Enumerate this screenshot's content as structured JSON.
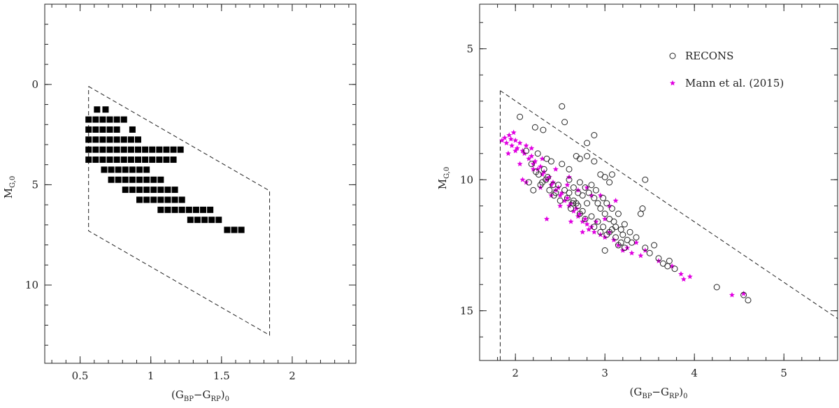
{
  "chart_data": [
    {
      "type": "scatter",
      "marker": "filled-square",
      "xlabel": "(G_BP - G_RP)_0",
      "xlabel_main": "(G",
      "xlabel_sub1": "BP",
      "xlabel_mid": "−G",
      "xlabel_sub2": "RP",
      "xlabel_tail": ")",
      "xlabel_sub3": "0",
      "ylabel_main": "M",
      "ylabel_sub": "G,0",
      "xlim": [
        0.25,
        2.45
      ],
      "ylim": [
        13.9,
        -4.0
      ],
      "x_ticks": [
        0.5,
        1,
        1.5,
        2
      ],
      "x_tick_labels": [
        "0.5",
        "1",
        "1.5",
        "2"
      ],
      "y_ticks": [
        0,
        5,
        10
      ],
      "y_tick_labels": [
        "0",
        "5",
        "10"
      ],
      "x_minor_step": 0.1,
      "y_minor_step": 1,
      "boundary_dashed": [
        [
          0.56,
          0.1
        ],
        [
          1.84,
          5.3
        ],
        [
          1.84,
          12.5
        ],
        [
          0.56,
          7.3
        ],
        [
          0.56,
          0.1
        ]
      ],
      "grid_rows": [
        {
          "y": 1.25,
          "x": [
            0.62,
            0.68
          ]
        },
        {
          "y": 1.75,
          "x": [
            0.56,
            0.61,
            0.66,
            0.71,
            0.76,
            0.81
          ]
        },
        {
          "y": 2.25,
          "x": [
            0.56,
            0.61,
            0.66,
            0.71,
            0.76,
            0.87
          ]
        },
        {
          "y": 2.75,
          "x": [
            0.56,
            0.61,
            0.66,
            0.71,
            0.76,
            0.81,
            0.86,
            0.91
          ]
        },
        {
          "y": 3.25,
          "x": [
            0.56,
            0.61,
            0.66,
            0.71,
            0.76,
            0.81,
            0.86,
            0.91,
            0.96,
            1.01,
            1.06,
            1.11,
            1.16,
            1.21
          ]
        },
        {
          "y": 3.75,
          "x": [
            0.56,
            0.61,
            0.66,
            0.71,
            0.76,
            0.81,
            0.86,
            0.91,
            0.96,
            1.01,
            1.06,
            1.11,
            1.16
          ]
        },
        {
          "y": 4.25,
          "x": [
            0.67,
            0.72,
            0.77,
            0.82,
            0.87,
            0.92,
            0.97
          ]
        },
        {
          "y": 4.75,
          "x": [
            0.72,
            0.77,
            0.82,
            0.87,
            0.92,
            0.97,
            1.02,
            1.07
          ]
        },
        {
          "y": 5.25,
          "x": [
            0.82,
            0.87,
            0.92,
            0.97,
            1.02,
            1.07,
            1.12,
            1.17
          ]
        },
        {
          "y": 5.75,
          "x": [
            0.92,
            0.97,
            1.02,
            1.07,
            1.12,
            1.17,
            1.22
          ]
        },
        {
          "y": 6.25,
          "x": [
            1.07,
            1.12,
            1.17,
            1.22,
            1.27,
            1.32,
            1.37,
            1.42
          ]
        },
        {
          "y": 6.75,
          "x": [
            1.28,
            1.33,
            1.38,
            1.43,
            1.48
          ]
        },
        {
          "y": 7.25,
          "x": [
            1.54,
            1.59,
            1.64
          ]
        }
      ]
    },
    {
      "type": "scatter",
      "xlabel": "(G_BP - G_RP)_0",
      "xlabel_main": "(G",
      "xlabel_sub1": "BP",
      "xlabel_mid": "−G",
      "xlabel_sub2": "RP",
      "xlabel_tail": ")",
      "xlabel_sub3": "0",
      "ylabel_main": "M",
      "ylabel_sub": "G,0",
      "xlim": [
        1.6,
        5.6
      ],
      "ylim": [
        16.9,
        3.3
      ],
      "x_ticks": [
        2,
        3,
        4,
        5
      ],
      "x_tick_labels": [
        "2",
        "3",
        "4",
        "5"
      ],
      "y_ticks": [
        5,
        10,
        15
      ],
      "y_tick_labels": [
        "5",
        "10",
        "15"
      ],
      "x_minor_step": 0.2,
      "y_minor_step": 1,
      "boundary_dashed_line": [
        [
          1.83,
          6.6
        ],
        [
          5.6,
          15.3
        ]
      ],
      "boundary_dashed_vertical": [
        [
          1.83,
          6.6
        ],
        [
          1.83,
          16.9
        ]
      ],
      "legend": {
        "position": "top-right",
        "entries": [
          {
            "label": "RECONS",
            "marker": "open-circle",
            "color": "#222222"
          },
          {
            "label": "Mann et al. (2015)",
            "marker": "star",
            "color": "#e000e0"
          }
        ]
      },
      "series": [
        {
          "name": "RECONS",
          "marker": "open-circle",
          "color": "#222222",
          "points": [
            [
              2.05,
              7.6
            ],
            [
              2.22,
              8.0
            ],
            [
              2.31,
              8.1
            ],
            [
              2.52,
              7.2
            ],
            [
              2.55,
              7.8
            ],
            [
              2.88,
              8.3
            ],
            [
              2.8,
              8.6
            ],
            [
              2.12,
              8.9
            ],
            [
              2.25,
              9.0
            ],
            [
              2.35,
              9.2
            ],
            [
              2.4,
              9.3
            ],
            [
              2.32,
              9.6
            ],
            [
              2.52,
              9.4
            ],
            [
              2.6,
              9.6
            ],
            [
              2.68,
              9.1
            ],
            [
              2.72,
              9.2
            ],
            [
              2.8,
              9.1
            ],
            [
              2.88,
              9.3
            ],
            [
              2.95,
              9.8
            ],
            [
              3.0,
              9.9
            ],
            [
              3.05,
              10.1
            ],
            [
              3.08,
              9.8
            ],
            [
              3.45,
              10.0
            ],
            [
              2.23,
              9.7
            ],
            [
              2.3,
              10.1
            ],
            [
              2.2,
              10.4
            ],
            [
              2.28,
              10.2
            ],
            [
              2.38,
              10.4
            ],
            [
              2.43,
              10.6
            ],
            [
              2.48,
              10.2
            ],
            [
              2.55,
              10.4
            ],
            [
              2.6,
              10.0
            ],
            [
              2.65,
              10.3
            ],
            [
              2.7,
              10.5
            ],
            [
              2.72,
              10.1
            ],
            [
              2.75,
              10.6
            ],
            [
              2.78,
              10.3
            ],
            [
              2.8,
              10.9
            ],
            [
              2.82,
              10.5
            ],
            [
              2.85,
              10.2
            ],
            [
              2.88,
              10.7
            ],
            [
              2.9,
              10.4
            ],
            [
              2.92,
              10.9
            ],
            [
              2.95,
              11.1
            ],
            [
              2.98,
              10.7
            ],
            [
              3.0,
              11.3
            ],
            [
              3.02,
              10.9
            ],
            [
              3.05,
              11.5
            ],
            [
              3.08,
              11.1
            ],
            [
              3.1,
              11.6
            ],
            [
              3.12,
              11.8
            ],
            [
              3.15,
              11.3
            ],
            [
              3.18,
              11.9
            ],
            [
              3.2,
              12.1
            ],
            [
              3.22,
              11.7
            ],
            [
              3.25,
              12.3
            ],
            [
              3.28,
              12.0
            ],
            [
              3.3,
              12.4
            ],
            [
              3.35,
              12.2
            ],
            [
              3.4,
              11.3
            ],
            [
              3.42,
              11.1
            ],
            [
              3.45,
              12.6
            ],
            [
              3.5,
              12.8
            ],
            [
              3.55,
              12.5
            ],
            [
              3.6,
              13.0
            ],
            [
              3.65,
              13.2
            ],
            [
              3.7,
              13.3
            ],
            [
              3.72,
              13.1
            ],
            [
              3.78,
              13.4
            ],
            [
              2.65,
              10.8
            ],
            [
              2.7,
              11.0
            ],
            [
              2.75,
              11.2
            ],
            [
              2.62,
              11.1
            ],
            [
              2.68,
              10.9
            ],
            [
              2.58,
              10.7
            ],
            [
              2.85,
              11.4
            ],
            [
              2.92,
              11.6
            ],
            [
              2.98,
              11.8
            ],
            [
              3.05,
              12.0
            ],
            [
              3.12,
              12.2
            ],
            [
              3.18,
              12.4
            ],
            [
              2.5,
              10.8
            ],
            [
              2.45,
              10.5
            ],
            [
              2.42,
              10.2
            ],
            [
              2.36,
              9.9
            ],
            [
              2.15,
              10.1
            ],
            [
              2.18,
              9.4
            ],
            [
              2.26,
              9.8
            ],
            [
              2.34,
              10.0
            ],
            [
              2.78,
              11.5
            ],
            [
              2.72,
              11.3
            ],
            [
              2.88,
              11.8
            ],
            [
              2.95,
              12.0
            ],
            [
              3.02,
              12.1
            ],
            [
              3.08,
              11.9
            ],
            [
              3.15,
              12.5
            ],
            [
              3.22,
              12.6
            ],
            [
              4.25,
              14.1
            ],
            [
              4.55,
              14.4
            ],
            [
              4.6,
              14.6
            ],
            [
              3.0,
              12.7
            ],
            [
              2.6,
              10.5
            ],
            [
              2.64,
              10.9
            ]
          ]
        },
        {
          "name": "Mann et al. (2015)",
          "marker": "star",
          "color": "#e000e0",
          "points": [
            [
              1.85,
              8.5
            ],
            [
              1.88,
              8.4
            ],
            [
              1.9,
              8.6
            ],
            [
              1.93,
              8.3
            ],
            [
              1.95,
              8.45
            ],
            [
              1.98,
              8.2
            ],
            [
              2.0,
              8.5
            ],
            [
              1.96,
              8.7
            ],
            [
              2.02,
              8.8
            ],
            [
              2.05,
              8.6
            ],
            [
              2.08,
              8.9
            ],
            [
              2.1,
              9.0
            ],
            [
              2.12,
              8.7
            ],
            [
              2.15,
              9.2
            ],
            [
              2.18,
              9.1
            ],
            [
              2.2,
              9.4
            ],
            [
              2.22,
              9.3
            ],
            [
              2.25,
              9.6
            ],
            [
              2.28,
              9.5
            ],
            [
              2.3,
              9.8
            ],
            [
              2.32,
              9.7
            ],
            [
              2.35,
              10.0
            ],
            [
              2.38,
              9.9
            ],
            [
              2.4,
              10.2
            ],
            [
              2.42,
              10.1
            ],
            [
              2.45,
              10.4
            ],
            [
              2.48,
              10.3
            ],
            [
              2.5,
              10.6
            ],
            [
              2.52,
              10.5
            ],
            [
              2.55,
              10.8
            ],
            [
              2.58,
              10.7
            ],
            [
              2.6,
              11.0
            ],
            [
              2.62,
              10.9
            ],
            [
              2.65,
              11.2
            ],
            [
              2.68,
              11.1
            ],
            [
              2.7,
              11.4
            ],
            [
              2.72,
              11.3
            ],
            [
              2.75,
              11.6
            ],
            [
              2.78,
              11.5
            ],
            [
              2.8,
              11.7
            ],
            [
              2.82,
              11.9
            ],
            [
              2.85,
              11.8
            ],
            [
              2.88,
              12.0
            ],
            [
              2.9,
              11.6
            ],
            [
              2.95,
              12.1
            ],
            [
              3.0,
              12.2
            ],
            [
              3.05,
              12.0
            ],
            [
              3.1,
              12.3
            ],
            [
              3.15,
              12.5
            ],
            [
              3.2,
              12.7
            ],
            [
              3.25,
              12.6
            ],
            [
              3.3,
              12.8
            ],
            [
              3.35,
              12.4
            ],
            [
              3.4,
              12.9
            ],
            [
              3.45,
              12.7
            ],
            [
              3.6,
              13.1
            ],
            [
              3.75,
              13.3
            ],
            [
              3.85,
              13.6
            ],
            [
              3.88,
              13.8
            ],
            [
              3.95,
              13.7
            ],
            [
              2.08,
              10.0
            ],
            [
              2.12,
              10.1
            ],
            [
              2.35,
              11.5
            ],
            [
              3.12,
              10.8
            ],
            [
              2.05,
              9.4
            ],
            [
              2.2,
              9.6
            ],
            [
              2.28,
              10.3
            ],
            [
              2.4,
              10.6
            ],
            [
              2.58,
              10.2
            ],
            [
              2.7,
              10.4
            ],
            [
              2.8,
              10.3
            ],
            [
              2.95,
              10.6
            ],
            [
              3.05,
              11.0
            ],
            [
              2.62,
              11.6
            ],
            [
              2.75,
              12.0
            ],
            [
              2.5,
              11.0
            ],
            [
              4.42,
              14.4
            ],
            [
              4.55,
              14.35
            ],
            [
              2.0,
              8.9
            ],
            [
              1.92,
              9.0
            ],
            [
              2.18,
              8.8
            ],
            [
              2.3,
              9.2
            ],
            [
              2.45,
              9.6
            ],
            [
              2.6,
              9.9
            ],
            [
              2.85,
              10.6
            ],
            [
              3.0,
              11.5
            ]
          ]
        }
      ]
    }
  ]
}
